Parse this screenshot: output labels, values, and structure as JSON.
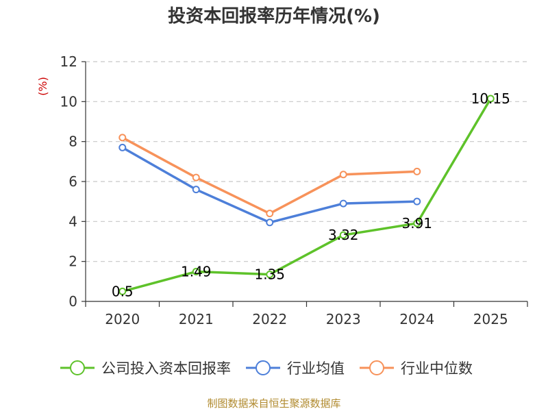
{
  "chart_data": {
    "type": "line",
    "title": "投资本回报率历年情况(%)",
    "ylabel": "(%)",
    "xlabel": "",
    "categories": [
      "2020",
      "2021",
      "2022",
      "2023",
      "2024",
      "2025"
    ],
    "ylim": [
      0,
      12
    ],
    "yticks": [
      0,
      2,
      4,
      6,
      8,
      10,
      12
    ],
    "grid": "horizontal-dashed",
    "legend_position": "bottom",
    "series": [
      {
        "name": "公司投入资本回报率",
        "color": "#5ec22a",
        "values": [
          0.5,
          1.49,
          1.35,
          3.32,
          3.91,
          10.15
        ],
        "data_labels": [
          "0.5",
          "1.49",
          "1.35",
          "3.32",
          "3.91",
          "10.15"
        ]
      },
      {
        "name": "行业均值",
        "color": "#4d7fd9",
        "values": [
          7.7,
          5.6,
          3.95,
          4.9,
          5.0,
          null
        ]
      },
      {
        "name": "行业中位数",
        "color": "#f7925a",
        "values": [
          8.2,
          6.2,
          4.4,
          6.35,
          6.5,
          null
        ]
      }
    ]
  },
  "footer": "制图数据来自恒生聚源数据库"
}
